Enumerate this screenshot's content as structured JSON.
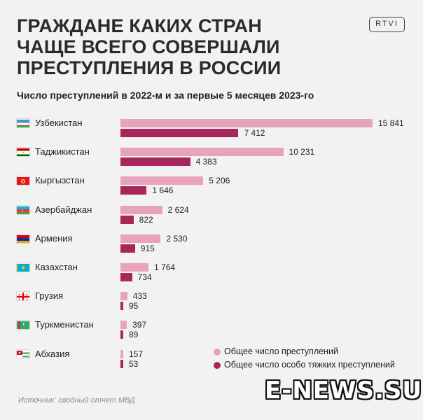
{
  "header": {
    "title_lines": [
      "ГРАЖДАНЕ КАКИХ СТРАН",
      "ЧАЩЕ ВСЕГО СОВЕРШАЛИ",
      "ПРЕСТУПЛЕНИЯ В РОССИИ"
    ],
    "logo": "RTVI"
  },
  "colors": {
    "total": "#e7a3bc",
    "serious": "#a8265a"
  },
  "chart_data": {
    "type": "bar",
    "orientation": "horizontal",
    "title": "Число преступлений в 2022-м и за первые 5 месяцев 2023-го",
    "categories": [
      "Узбекистан",
      "Таджикистан",
      "Кыргызстан",
      "Азербайджан",
      "Армения",
      "Казахстан",
      "Грузия",
      "Туркменистан",
      "Абхазия"
    ],
    "category_flags": [
      "uzbekistan-flag-icon",
      "tajikistan-flag-icon",
      "kyrgyzstan-flag-icon",
      "azerbaijan-flag-icon",
      "armenia-flag-icon",
      "kazakhstan-flag-icon",
      "georgia-flag-icon",
      "turkmenistan-flag-icon",
      "abkhazia-flag-icon"
    ],
    "series": [
      {
        "name": "Общее число преступлений",
        "values": [
          15841,
          10231,
          5206,
          2624,
          2530,
          1764,
          433,
          397,
          157
        ],
        "labels": [
          "15 841",
          "10 231",
          "5 206",
          "2 624",
          "2 530",
          "1 764",
          "433",
          "397",
          "157"
        ]
      },
      {
        "name": "Общее число особо тяжких преступлений",
        "values": [
          7412,
          4383,
          1646,
          822,
          915,
          734,
          95,
          89,
          53
        ],
        "labels": [
          "7 412",
          "4 383",
          "1 646",
          "822",
          "915",
          "734",
          "95",
          "89",
          "53"
        ]
      }
    ],
    "xlim": [
      0,
      15841
    ],
    "grid": false,
    "legend": "bottom-right"
  },
  "footer": {
    "source": "Источник: сводный отчет МВД",
    "watermark": "E-NEWS.SU"
  }
}
